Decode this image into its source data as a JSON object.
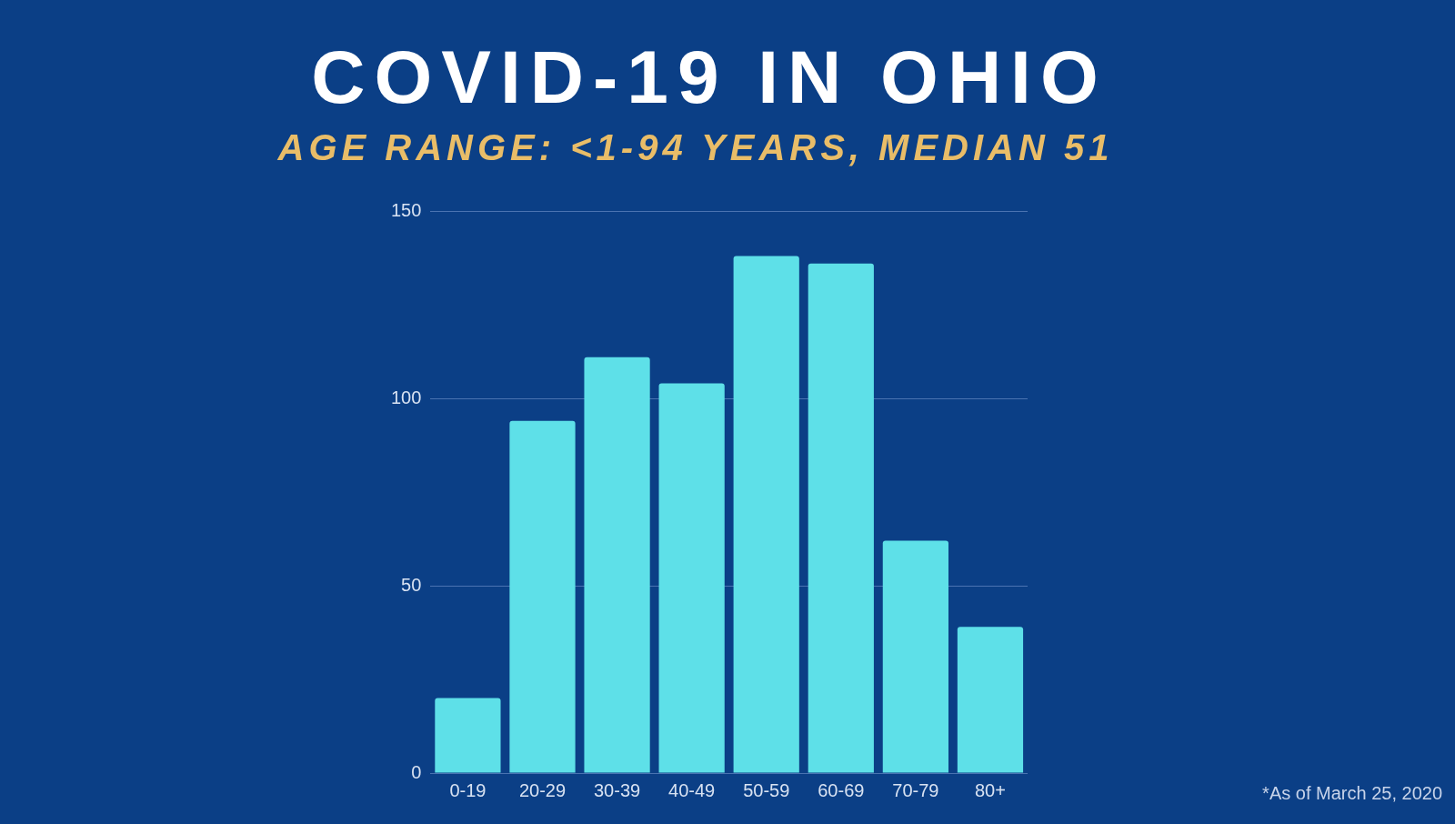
{
  "chart_data": {
    "type": "bar",
    "title": "COVID-19 IN OHIO",
    "subtitle": "AGE RANGE: <1-94 YEARS, MEDIAN 51",
    "categories": [
      "0-19",
      "20-29",
      "30-39",
      "40-49",
      "50-59",
      "60-69",
      "70-79",
      "80+"
    ],
    "values": [
      20,
      94,
      111,
      104,
      138,
      136,
      62,
      39
    ],
    "color": "#5ee0e8",
    "ylim": [
      0,
      150
    ],
    "yticks": [
      0,
      50,
      100,
      150
    ],
    "grid": "y",
    "legend": false,
    "annotations": [
      "*As of March 25, 2020"
    ]
  }
}
